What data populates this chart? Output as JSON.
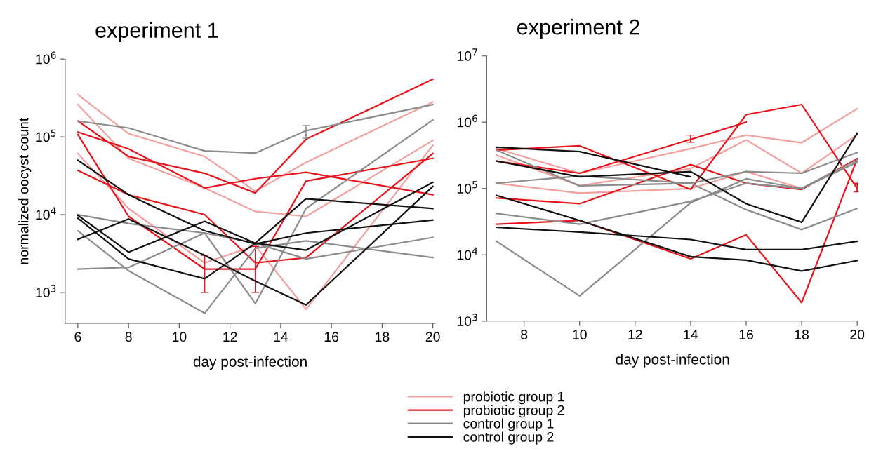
{
  "chart_data": [
    {
      "type": "line",
      "title": "experiment 1",
      "xlabel": "day post-infection",
      "ylabel": "normalized oocyst count",
      "log": "y",
      "grid": false,
      "x": [
        6,
        8,
        11,
        13,
        15,
        20
      ],
      "xlim": [
        5.5,
        20.1
      ],
      "xticks": [
        6,
        8,
        10,
        12,
        14,
        16,
        18,
        20
      ],
      "ylim": [
        400,
        1000000
      ],
      "yticks": [
        {
          "value": 1000,
          "label": "10$^{3}$"
        },
        {
          "value": 10000,
          "label": "10$^{4}$"
        },
        {
          "value": 100000,
          "label": "10$^{5}$"
        },
        {
          "value": 1000000,
          "label": "10$^{6}$"
        }
      ],
      "series": [
        {
          "color": "#f4a0a0",
          "values": [
            350000,
            110000,
            56000,
            20000,
            47000,
            280000
          ]
        },
        {
          "color": "#f4a0a0",
          "values": [
            260000,
            53000,
            22000,
            11000,
            9500,
            90000
          ]
        },
        {
          "color": "#f4a0a0",
          "values": [
            61000,
            12000,
            2400,
            4000,
            610,
            78000
          ]
        },
        {
          "color": "#e8141c",
          "values": [
            160000,
            56000,
            34000,
            19000,
            93000,
            550000
          ]
        },
        {
          "color": "#e8141c",
          "values": [
            115000,
            70000,
            22000,
            29000,
            35000,
            18000
          ]
        },
        {
          "color": "#e8141c",
          "values": [
            107000,
            9500,
            2000,
            2000,
            27000,
            53000
          ],
          "errors": [
            null,
            null,
            [
              1000,
              3000
            ],
            [
              1000,
              3900
            ],
            null,
            null
          ]
        },
        {
          "color": "#e8141c",
          "values": [
            37000,
            18000,
            10000,
            2400,
            2800,
            61000
          ]
        },
        {
          "color": "#8c8c8c",
          "values": [
            160000,
            130000,
            66000,
            62000,
            120000,
            260000
          ],
          "errors": [
            null,
            null,
            null,
            null,
            [
              96000,
              140000
            ],
            null
          ]
        },
        {
          "color": "#8c8c8c",
          "values": [
            10000,
            7700,
            5800,
            720,
            12000,
            165000
          ]
        },
        {
          "color": "#8c8c8c",
          "values": [
            6200,
            1900,
            540,
            3700,
            4600,
            2800
          ]
        },
        {
          "color": "#8c8c8c",
          "values": [
            2000,
            2100,
            5800,
            4300,
            2700,
            5100
          ]
        },
        {
          "color": "#111111",
          "values": [
            50000,
            18000,
            6200,
            4200,
            5800,
            8500
          ]
        },
        {
          "color": "#111111",
          "values": [
            9800,
            3300,
            8200,
            4300,
            3500,
            26000
          ]
        },
        {
          "color": "#111111",
          "values": [
            9000,
            2700,
            1500,
            4300,
            16000,
            12000
          ]
        },
        {
          "color": "#111111",
          "values": [
            4800,
            8800,
            3000,
            1400,
            690,
            23000
          ]
        }
      ]
    },
    {
      "type": "line",
      "title": "experiment 2",
      "xlabel": "day post-infection",
      "log": "y",
      "grid": false,
      "legend": "bottom",
      "x": [
        7,
        10,
        14,
        16,
        18,
        20
      ],
      "xlim": [
        6.65,
        20.05
      ],
      "xticks": [
        8,
        10,
        12,
        14,
        16,
        18,
        20
      ],
      "ylim": [
        1000,
        10000000
      ],
      "yticks": [
        {
          "value": 1000,
          "label": "10$^{3}$"
        },
        {
          "value": 10000,
          "label": "10$^{4}$"
        },
        {
          "value": 100000,
          "label": "10$^{5}$"
        },
        {
          "value": 1000000,
          "label": "10$^{6}$"
        },
        {
          "value": 10000000,
          "label": "10$^{7}$"
        }
      ],
      "series": [
        {
          "name": "probiotic group 1",
          "color": "#f4a0a0",
          "values": [
            400000,
            170000,
            400000,
            640000,
            490000,
            1600000
          ]
        },
        {
          "color": "#f4a0a0",
          "values": [
            320000,
            110000,
            200000,
            540000,
            170000,
            650000
          ]
        },
        {
          "color": "#f4a0a0",
          "values": [
            120000,
            85000,
            100000,
            180000,
            100000,
            280000
          ]
        },
        {
          "name": "probiotic group 2",
          "color": "#e8141c",
          "values": [
            380000,
            440000,
            97000,
            1300000,
            1850000,
            100000
          ],
          "errors": [
            null,
            null,
            null,
            null,
            null,
            [
              89000,
              120000
            ]
          ]
        },
        {
          "color": "#e8141c",
          "values": [
            260000,
            170000,
            550000,
            1000000,
            null,
            null
          ],
          "errors": [
            null,
            null,
            [
              500000,
              640000
            ],
            null,
            null,
            null
          ]
        },
        {
          "color": "#e8141c",
          "values": [
            72000,
            59000,
            230000,
            120000,
            97000,
            280000
          ]
        },
        {
          "color": "#e8141c",
          "values": [
            29000,
            33000,
            8700,
            20000,
            1900,
            280000
          ]
        },
        {
          "name": "control group 1",
          "color": "#8c8c8c",
          "values": [
            380000,
            110000,
            120000,
            48000,
            24000,
            50000
          ]
        },
        {
          "color": "#8c8c8c",
          "values": [
            120000,
            155000,
            120000,
            180000,
            170000,
            350000
          ]
        },
        {
          "color": "#8c8c8c",
          "values": [
            42000,
            29000,
            64000,
            120000,
            100000,
            270000
          ]
        },
        {
          "color": "#8c8c8c",
          "values": [
            16000,
            2400,
            61000,
            140000,
            100000,
            250000
          ]
        },
        {
          "name": "control group 2",
          "color": "#111111",
          "values": [
            420000,
            360000,
            150000,
            null,
            null,
            null
          ]
        },
        {
          "color": "#111111",
          "values": [
            260000,
            150000,
            180000,
            59000,
            31000,
            680000
          ]
        },
        {
          "color": "#111111",
          "values": [
            79000,
            33000,
            9400,
            8300,
            5700,
            8200
          ]
        },
        {
          "color": "#111111",
          "values": [
            26000,
            22000,
            17000,
            12000,
            12000,
            16000
          ]
        }
      ]
    }
  ]
}
